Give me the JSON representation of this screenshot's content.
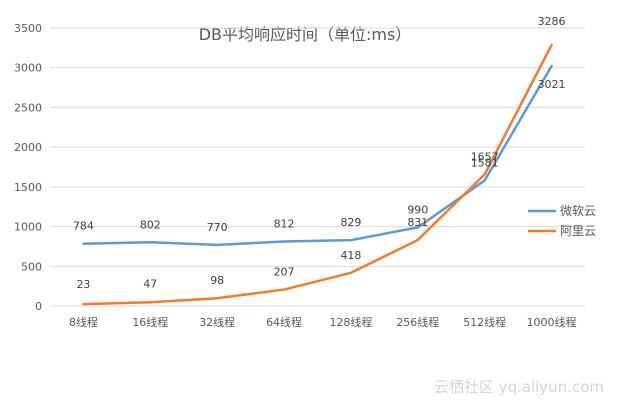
{
  "chart_data": {
    "type": "line",
    "title": "DB平均响应时间（单位:ms）",
    "xlabel": "",
    "ylabel": "",
    "categories": [
      "8线程",
      "16线程",
      "32线程",
      "64线程",
      "128线程",
      "256线程",
      "512线程",
      "1000线程"
    ],
    "ylim": [
      0,
      3500
    ],
    "yticks": [
      0,
      500,
      1000,
      1500,
      2000,
      2500,
      3000,
      3500
    ],
    "grid": true,
    "legend_position": "right",
    "series": [
      {
        "name": "微软云",
        "color": "#5B9BD5",
        "values": [
          784,
          802,
          770,
          812,
          829,
          990,
          1581,
          3021
        ]
      },
      {
        "name": "阿里云",
        "color": "#ED7D31",
        "values": [
          23,
          47,
          98,
          207,
          418,
          831,
          1657,
          3286
        ]
      }
    ]
  },
  "watermark": "云栖社区 yq.aliyun.com"
}
